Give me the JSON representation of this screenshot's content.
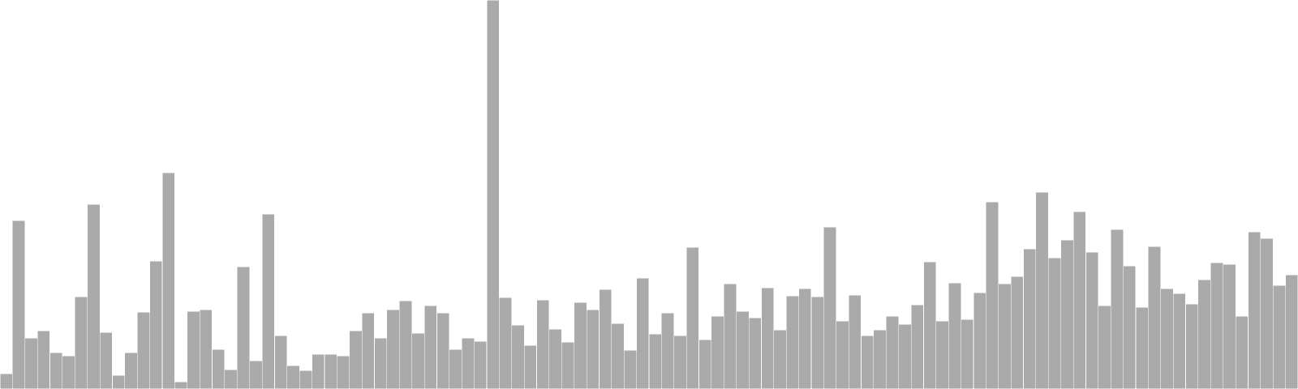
{
  "chart_data": {
    "type": "bar",
    "bar_color": "#aaaaaa",
    "bar_edge_color": "#ffffff",
    "background": "#ffffff",
    "axes_visible": false,
    "grid": false,
    "ylim": [
      0,
      480
    ],
    "values": [
      19,
      208,
      63,
      72,
      45,
      41,
      114,
      228,
      70,
      17,
      45,
      95,
      158,
      267,
      9,
      96,
      98,
      49,
      24,
      151,
      35,
      216,
      66,
      29,
      23,
      43,
      43,
      41,
      72,
      94,
      63,
      98,
      109,
      69,
      103,
      94,
      49,
      63,
      59,
      480,
      113,
      79,
      54,
      110,
      74,
      58,
      107,
      98,
      123,
      81,
      48,
      137,
      68,
      94,
      66,
      175,
      61,
      90,
      130,
      96,
      88,
      125,
      73,
      115,
      124,
      114,
      200,
      84,
      116,
      66,
      73,
      90,
      80,
      104,
      157,
      84,
      131,
      86,
      119,
      231,
      130,
      139,
      173,
      243,
      162,
      184,
      219,
      169,
      103,
      197,
      152,
      101,
      176,
      124,
      118,
      105,
      135,
      156,
      154,
      90,
      194,
      186,
      128,
      141
    ]
  }
}
